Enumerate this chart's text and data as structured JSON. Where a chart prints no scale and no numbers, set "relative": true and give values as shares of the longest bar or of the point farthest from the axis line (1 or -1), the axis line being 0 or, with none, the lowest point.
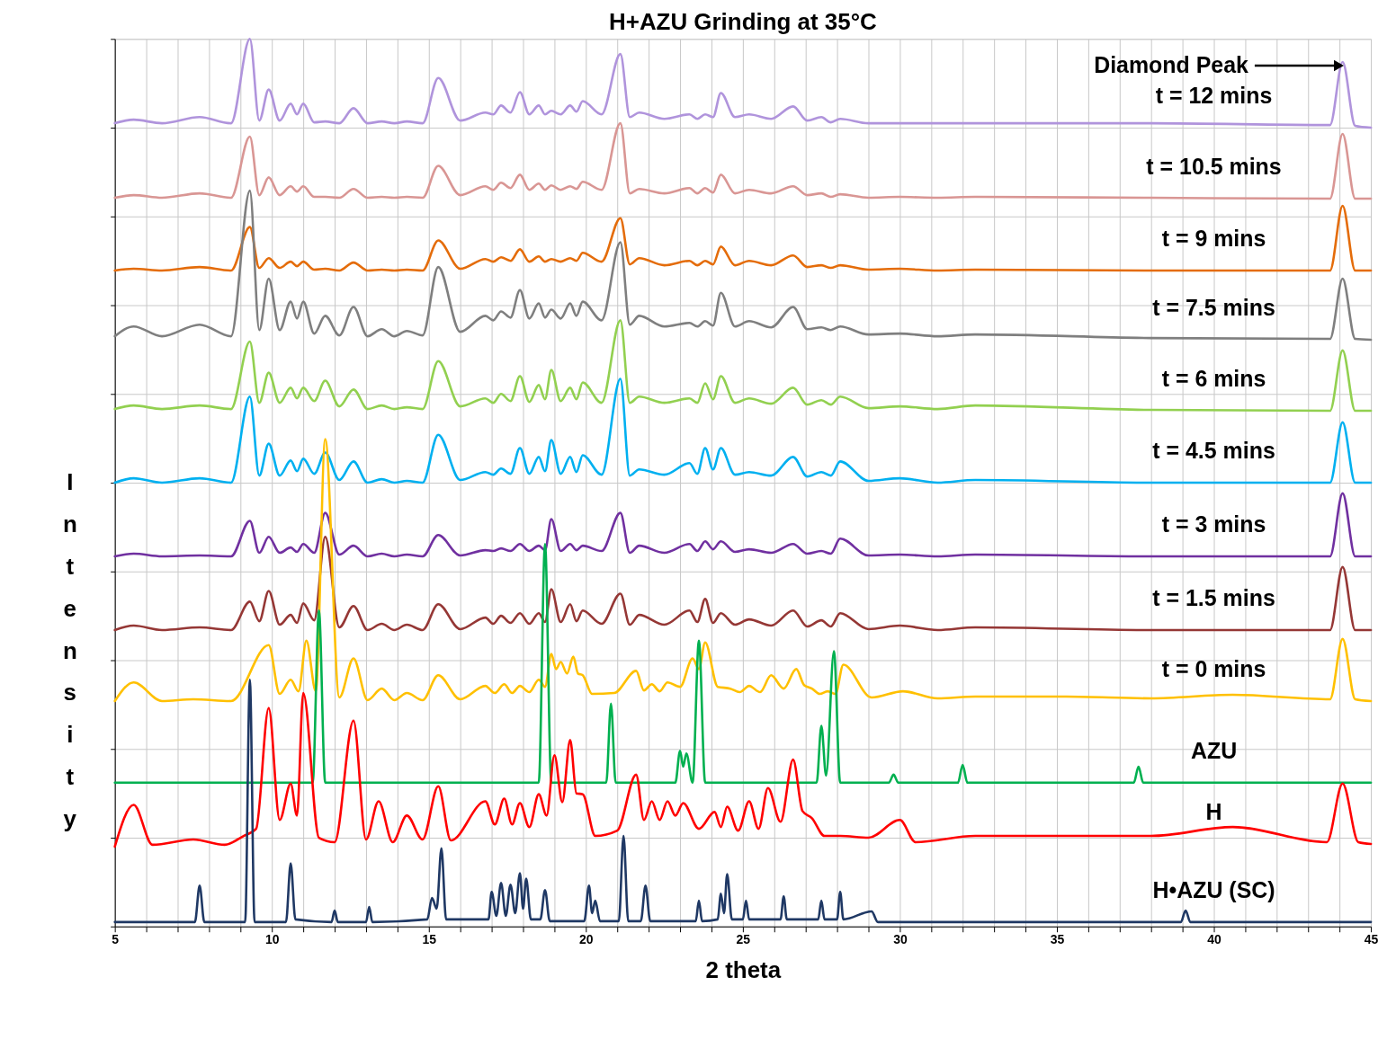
{
  "chart_data": {
    "type": "line",
    "title": "H+AZU Grinding at 35°C",
    "xlabel": "2 theta",
    "ylabel": "Intensity",
    "relative": true,
    "grid": true,
    "line_style": "solid",
    "xlim": [
      5,
      45
    ],
    "xticks": [
      5,
      {
        "value": 6,
        "label": null
      },
      {
        "value": 7,
        "label": null
      },
      {
        "value": 8,
        "label": null
      },
      {
        "value": 9,
        "label": null
      },
      10,
      {
        "value": 11,
        "label": null
      },
      {
        "value": 12,
        "label": null
      },
      {
        "value": 13,
        "label": null
      },
      {
        "value": 14,
        "label": null
      },
      15,
      {
        "value": 16,
        "label": null
      },
      {
        "value": 17,
        "label": null
      },
      {
        "value": 18,
        "label": null
      },
      {
        "value": 19,
        "label": null
      },
      20,
      {
        "value": 21,
        "label": null
      },
      {
        "value": 22,
        "label": null
      },
      {
        "value": 23,
        "label": null
      },
      {
        "value": 24,
        "label": null
      },
      25,
      {
        "value": 26,
        "label": null
      },
      {
        "value": 27,
        "label": null
      },
      {
        "value": 28,
        "label": null
      },
      {
        "value": 29,
        "label": null
      },
      30,
      {
        "value": 31,
        "label": null
      },
      {
        "value": 32,
        "label": null
      },
      {
        "value": 33,
        "label": null
      },
      {
        "value": 34,
        "label": null
      },
      35,
      {
        "value": 36,
        "label": null
      },
      {
        "value": 37,
        "label": null
      },
      {
        "value": 38,
        "label": null
      },
      {
        "value": 39,
        "label": null
      },
      40,
      {
        "value": 41,
        "label": null
      },
      {
        "value": 42,
        "label": null
      },
      {
        "value": 43,
        "label": null
      },
      {
        "value": 44,
        "label": null
      },
      45
    ],
    "x": [
      5,
      5.6,
      6.5,
      7.7,
      8.7,
      9.3,
      9.6,
      9.9,
      10.25,
      10.6,
      10.8,
      11.0,
      11.35,
      11.7,
      12.15,
      12.6,
      13.05,
      13.5,
      13.9,
      14.3,
      14.8,
      15.3,
      16.0,
      16.8,
      17.05,
      17.3,
      17.6,
      17.9,
      18.2,
      18.5,
      18.7,
      18.9,
      19.2,
      19.5,
      19.7,
      19.9,
      20.5,
      21.1,
      21.4,
      21.7,
      22.5,
      23.3,
      23.55,
      23.8,
      24.05,
      24.3,
      24.75,
      25.2,
      25.9,
      26.6,
      27.05,
      27.5,
      27.8,
      28.1,
      29.0,
      30.0,
      31.2,
      32.4,
      38.0,
      43.7,
      44.1,
      44.5,
      45
    ],
    "annotations": [
      {
        "text": "Diamond Peak",
        "x": 44.1,
        "y": 0.97
      }
    ],
    "series": [
      {
        "name": "t = 12 mins",
        "color": "#b094dc",
        "values": [
          0.905,
          0.909,
          0.905,
          0.912,
          0.905,
          1.0,
          0.908,
          0.943,
          0.908,
          0.927,
          0.915,
          0.927,
          0.906,
          0.907,
          0.905,
          0.922,
          0.905,
          0.907,
          0.905,
          0.907,
          0.905,
          0.956,
          0.908,
          0.917,
          0.915,
          0.925,
          0.917,
          0.94,
          0.915,
          0.925,
          0.915,
          0.919,
          0.915,
          0.925,
          0.918,
          0.93,
          0.915,
          0.983,
          0.912,
          0.917,
          0.91,
          0.915,
          0.91,
          0.915,
          0.912,
          0.939,
          0.912,
          0.915,
          0.91,
          0.924,
          0.908,
          0.912,
          0.906,
          0.91,
          0.905,
          0.905,
          0.905,
          0.905,
          0.905,
          0.903,
          0.974,
          0.902,
          0.9
        ]
      },
      {
        "name": "t = 10.5 mins",
        "color": "#d99694",
        "values": [
          0.821,
          0.824,
          0.821,
          0.826,
          0.821,
          0.89,
          0.824,
          0.844,
          0.824,
          0.834,
          0.828,
          0.834,
          0.822,
          0.822,
          0.821,
          0.831,
          0.821,
          0.822,
          0.821,
          0.822,
          0.821,
          0.857,
          0.824,
          0.834,
          0.83,
          0.838,
          0.832,
          0.847,
          0.83,
          0.837,
          0.83,
          0.835,
          0.83,
          0.834,
          0.831,
          0.839,
          0.83,
          0.905,
          0.826,
          0.831,
          0.826,
          0.832,
          0.826,
          0.832,
          0.827,
          0.847,
          0.826,
          0.83,
          0.826,
          0.834,
          0.824,
          0.826,
          0.822,
          0.825,
          0.821,
          0.822,
          0.821,
          0.822,
          0.821,
          0.82,
          0.893,
          0.82,
          0.82
        ]
      },
      {
        "name": "t = 9 mins",
        "color": "#e46c0a",
        "values": [
          0.739,
          0.741,
          0.739,
          0.743,
          0.739,
          0.788,
          0.742,
          0.753,
          0.742,
          0.749,
          0.744,
          0.749,
          0.74,
          0.741,
          0.739,
          0.748,
          0.739,
          0.74,
          0.739,
          0.74,
          0.739,
          0.773,
          0.741,
          0.752,
          0.749,
          0.754,
          0.75,
          0.763,
          0.749,
          0.755,
          0.749,
          0.752,
          0.749,
          0.753,
          0.75,
          0.759,
          0.749,
          0.798,
          0.746,
          0.753,
          0.745,
          0.75,
          0.745,
          0.75,
          0.746,
          0.766,
          0.745,
          0.75,
          0.745,
          0.756,
          0.743,
          0.745,
          0.742,
          0.745,
          0.74,
          0.741,
          0.739,
          0.74,
          0.739,
          0.739,
          0.812,
          0.739,
          0.739
        ]
      },
      {
        "name": "t = 7.5 mins",
        "color": "#7f7f7f",
        "values": [
          0.665,
          0.676,
          0.665,
          0.678,
          0.665,
          0.829,
          0.672,
          0.73,
          0.672,
          0.704,
          0.685,
          0.704,
          0.668,
          0.688,
          0.666,
          0.698,
          0.665,
          0.673,
          0.665,
          0.671,
          0.666,
          0.743,
          0.67,
          0.688,
          0.683,
          0.693,
          0.686,
          0.717,
          0.685,
          0.702,
          0.686,
          0.695,
          0.685,
          0.702,
          0.688,
          0.704,
          0.683,
          0.771,
          0.678,
          0.688,
          0.676,
          0.68,
          0.676,
          0.682,
          0.677,
          0.714,
          0.676,
          0.682,
          0.675,
          0.698,
          0.673,
          0.675,
          0.672,
          0.676,
          0.667,
          0.668,
          0.665,
          0.667,
          0.663,
          0.662,
          0.73,
          0.662,
          0.661
        ]
      },
      {
        "name": "t = 6 mins",
        "color": "#92d050",
        "values": [
          0.583,
          0.587,
          0.583,
          0.587,
          0.583,
          0.659,
          0.59,
          0.624,
          0.59,
          0.607,
          0.595,
          0.607,
          0.592,
          0.615,
          0.586,
          0.605,
          0.583,
          0.587,
          0.583,
          0.585,
          0.583,
          0.637,
          0.586,
          0.595,
          0.59,
          0.6,
          0.592,
          0.62,
          0.591,
          0.61,
          0.594,
          0.627,
          0.592,
          0.607,
          0.594,
          0.613,
          0.59,
          0.683,
          0.59,
          0.597,
          0.59,
          0.595,
          0.59,
          0.612,
          0.594,
          0.62,
          0.59,
          0.595,
          0.589,
          0.607,
          0.588,
          0.593,
          0.588,
          0.597,
          0.584,
          0.586,
          0.583,
          0.587,
          0.582,
          0.581,
          0.649,
          0.581,
          0.581
        ]
      },
      {
        "name": "t = 4.5 mins",
        "color": "#00b0f0",
        "values": [
          0.5,
          0.505,
          0.5,
          0.505,
          0.5,
          0.597,
          0.508,
          0.544,
          0.508,
          0.525,
          0.513,
          0.527,
          0.51,
          0.534,
          0.503,
          0.524,
          0.5,
          0.504,
          0.5,
          0.502,
          0.5,
          0.554,
          0.503,
          0.512,
          0.509,
          0.516,
          0.51,
          0.539,
          0.51,
          0.529,
          0.513,
          0.548,
          0.51,
          0.529,
          0.512,
          0.531,
          0.509,
          0.617,
          0.508,
          0.515,
          0.509,
          0.522,
          0.51,
          0.539,
          0.515,
          0.539,
          0.509,
          0.512,
          0.508,
          0.529,
          0.507,
          0.512,
          0.508,
          0.524,
          0.502,
          0.505,
          0.5,
          0.503,
          0.5,
          0.5,
          0.568,
          0.5,
          0.5
        ]
      },
      {
        "name": "t = 3 mins",
        "color": "#7030a0",
        "values": [
          0.417,
          0.42,
          0.417,
          0.418,
          0.417,
          0.457,
          0.421,
          0.439,
          0.421,
          0.427,
          0.422,
          0.431,
          0.421,
          0.466,
          0.419,
          0.429,
          0.417,
          0.42,
          0.417,
          0.419,
          0.417,
          0.441,
          0.418,
          0.424,
          0.423,
          0.426,
          0.423,
          0.431,
          0.423,
          0.429,
          0.424,
          0.459,
          0.423,
          0.431,
          0.424,
          0.429,
          0.423,
          0.466,
          0.421,
          0.429,
          0.421,
          0.431,
          0.423,
          0.434,
          0.425,
          0.434,
          0.422,
          0.425,
          0.421,
          0.431,
          0.42,
          0.423,
          0.42,
          0.437,
          0.418,
          0.419,
          0.417,
          0.419,
          0.417,
          0.417,
          0.488,
          0.417,
          0.417
        ]
      },
      {
        "name": "t = 1.5 mins",
        "color": "#953735",
        "values": [
          0.334,
          0.339,
          0.334,
          0.337,
          0.334,
          0.366,
          0.344,
          0.378,
          0.34,
          0.351,
          0.342,
          0.364,
          0.345,
          0.439,
          0.337,
          0.361,
          0.334,
          0.341,
          0.334,
          0.34,
          0.334,
          0.363,
          0.335,
          0.348,
          0.341,
          0.35,
          0.342,
          0.353,
          0.341,
          0.353,
          0.343,
          0.38,
          0.343,
          0.363,
          0.344,
          0.356,
          0.341,
          0.375,
          0.34,
          0.351,
          0.34,
          0.356,
          0.343,
          0.369,
          0.342,
          0.353,
          0.34,
          0.346,
          0.339,
          0.356,
          0.338,
          0.345,
          0.338,
          0.353,
          0.335,
          0.339,
          0.334,
          0.337,
          0.334,
          0.334,
          0.405,
          0.334,
          0.334
        ]
      },
      {
        "name": "t = 0 mins",
        "color": "#ffc000",
        "x": [
          5,
          5.6,
          6.5,
          7.5,
          8.7,
          9.9,
          10.25,
          10.6,
          10.85,
          11.1,
          11.4,
          11.7,
          12.15,
          12.6,
          13.05,
          13.5,
          13.9,
          14.3,
          14.8,
          15.3,
          16.0,
          16.8,
          17.1,
          17.4,
          17.65,
          17.9,
          18.2,
          18.5,
          18.7,
          18.9,
          19.05,
          19.2,
          19.4,
          19.6,
          19.75,
          19.9,
          20.2,
          20.9,
          21.6,
          21.85,
          22.1,
          22.35,
          22.6,
          23.0,
          23.4,
          23.6,
          23.8,
          24.2,
          24.6,
          24.9,
          25.2,
          25.55,
          25.9,
          26.3,
          26.7,
          26.95,
          27.2,
          27.45,
          27.7,
          27.95,
          28.2,
          29.1,
          30.1,
          31.2,
          32.4,
          35.3,
          38.0,
          40.6,
          43.7,
          44.1,
          44.5,
          45
        ],
        "values": [
          0.254,
          0.275,
          0.254,
          0.256,
          0.254,
          0.317,
          0.262,
          0.278,
          0.265,
          0.322,
          0.265,
          0.549,
          0.258,
          0.302,
          0.255,
          0.268,
          0.255,
          0.263,
          0.255,
          0.283,
          0.256,
          0.271,
          0.263,
          0.273,
          0.263,
          0.271,
          0.264,
          0.278,
          0.27,
          0.307,
          0.29,
          0.298,
          0.285,
          0.304,
          0.285,
          0.283,
          0.262,
          0.263,
          0.288,
          0.266,
          0.273,
          0.265,
          0.275,
          0.27,
          0.302,
          0.29,
          0.32,
          0.27,
          0.268,
          0.264,
          0.271,
          0.264,
          0.283,
          0.268,
          0.29,
          0.272,
          0.268,
          0.262,
          0.265,
          0.262,
          0.295,
          0.258,
          0.265,
          0.257,
          0.259,
          0.259,
          0.257,
          0.261,
          0.256,
          0.324,
          0.256,
          0.254
        ]
      },
      {
        "name": "AZU",
        "color": "#00b050",
        "x": [
          5,
          11.3,
          11.5,
          11.7,
          18.5,
          18.7,
          18.9,
          20.65,
          20.8,
          20.95,
          22.85,
          23.0,
          23.1,
          23.2,
          23.4,
          23.6,
          23.8,
          27.35,
          27.5,
          27.65,
          27.9,
          28.1,
          29.65,
          29.8,
          29.95,
          31.85,
          32.0,
          32.15,
          37.45,
          37.6,
          37.75,
          45
        ],
        "values": [
          0.162,
          0.162,
          0.356,
          0.162,
          0.162,
          0.431,
          0.162,
          0.162,
          0.251,
          0.162,
          0.162,
          0.198,
          0.18,
          0.195,
          0.162,
          0.322,
          0.162,
          0.162,
          0.226,
          0.17,
          0.31,
          0.162,
          0.162,
          0.171,
          0.162,
          0.162,
          0.182,
          0.162,
          0.162,
          0.18,
          0.162,
          0.162
        ]
      },
      {
        "name": "H",
        "color": "#ff0000",
        "x": [
          5,
          5.6,
          6.2,
          7.5,
          8.5,
          9.1,
          9.5,
          9.9,
          10.25,
          10.6,
          10.8,
          11.0,
          11.5,
          12.0,
          12.6,
          13.0,
          13.4,
          13.85,
          14.3,
          14.8,
          15.3,
          15.7,
          16.8,
          17.1,
          17.4,
          17.65,
          17.9,
          18.2,
          18.5,
          18.75,
          19.0,
          19.25,
          19.5,
          19.7,
          19.9,
          20.3,
          21.0,
          21.6,
          21.85,
          22.1,
          22.35,
          22.6,
          22.85,
          23.1,
          23.6,
          24.1,
          24.3,
          24.5,
          24.85,
          25.2,
          25.5,
          25.8,
          26.2,
          26.6,
          26.9,
          27.2,
          27.6,
          28.1,
          29.0,
          30.0,
          30.5,
          32.4,
          34.7,
          38.0,
          40.6,
          43.6,
          44.1,
          44.6,
          45
        ],
        "values": [
          0.09,
          0.137,
          0.092,
          0.098,
          0.092,
          0.102,
          0.11,
          0.246,
          0.12,
          0.161,
          0.125,
          0.263,
          0.1,
          0.095,
          0.232,
          0.098,
          0.141,
          0.095,
          0.125,
          0.098,
          0.158,
          0.097,
          0.141,
          0.115,
          0.144,
          0.115,
          0.139,
          0.112,
          0.149,
          0.125,
          0.193,
          0.14,
          0.21,
          0.15,
          0.149,
          0.102,
          0.108,
          0.171,
          0.12,
          0.141,
          0.12,
          0.141,
          0.125,
          0.139,
          0.11,
          0.129,
          0.112,
          0.135,
          0.108,
          0.141,
          0.11,
          0.156,
          0.118,
          0.188,
          0.13,
          0.122,
          0.102,
          0.102,
          0.1,
          0.12,
          0.095,
          0.102,
          0.102,
          0.102,
          0.112,
          0.095,
          0.161,
          0.095,
          0.093
        ]
      },
      {
        "name": "H•AZU (SC)",
        "color": "#1f3864",
        "x": [
          5,
          7.55,
          7.7,
          7.85,
          9.15,
          9.3,
          9.45,
          10.45,
          10.6,
          10.75,
          11.9,
          12.0,
          12.1,
          13.0,
          13.1,
          13.2,
          14.95,
          15.1,
          15.25,
          15.4,
          15.55,
          16.9,
          17.0,
          17.15,
          17.3,
          17.45,
          17.6,
          17.75,
          17.9,
          18.0,
          18.1,
          18.25,
          18.55,
          18.7,
          18.85,
          19.95,
          20.1,
          20.2,
          20.3,
          20.45,
          21.05,
          21.2,
          21.35,
          21.75,
          21.9,
          22.05,
          23.5,
          23.6,
          23.7,
          24.2,
          24.3,
          24.4,
          24.5,
          24.65,
          25.0,
          25.1,
          25.2,
          26.2,
          26.3,
          26.4,
          27.4,
          27.5,
          27.6,
          28.0,
          28.1,
          28.2,
          29.1,
          29.3,
          38.95,
          39.1,
          39.25,
          45
        ],
        "values": [
          0.005,
          0.005,
          0.046,
          0.005,
          0.005,
          0.278,
          0.005,
          0.005,
          0.071,
          0.008,
          0.005,
          0.018,
          0.005,
          0.005,
          0.022,
          0.005,
          0.008,
          0.032,
          0.02,
          0.088,
          0.008,
          0.008,
          0.039,
          0.012,
          0.049,
          0.012,
          0.047,
          0.015,
          0.06,
          0.02,
          0.054,
          0.008,
          0.008,
          0.041,
          0.006,
          0.006,
          0.046,
          0.015,
          0.029,
          0.006,
          0.006,
          0.102,
          0.006,
          0.006,
          0.046,
          0.006,
          0.006,
          0.029,
          0.006,
          0.008,
          0.037,
          0.015,
          0.059,
          0.008,
          0.008,
          0.029,
          0.008,
          0.008,
          0.034,
          0.008,
          0.008,
          0.029,
          0.008,
          0.008,
          0.039,
          0.008,
          0.017,
          0.005,
          0.005,
          0.018,
          0.005,
          0.005
        ]
      }
    ]
  }
}
